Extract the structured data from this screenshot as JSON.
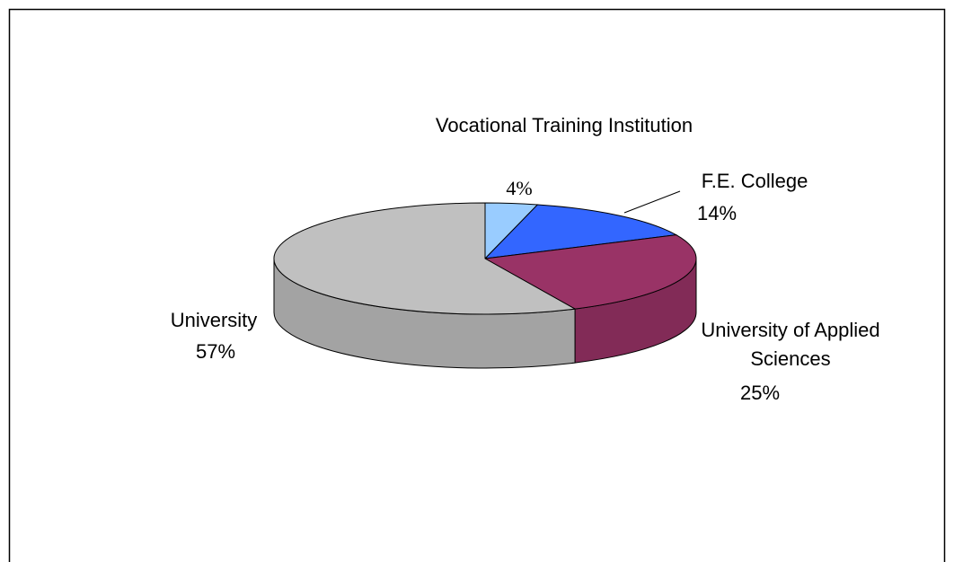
{
  "chart_data": {
    "type": "pie",
    "categories": [
      "Vocational Training Institution",
      "F.E. College",
      "University of Applied Sciences",
      "University"
    ],
    "values": [
      4,
      14,
      25,
      57
    ],
    "value_labels": [
      "4%",
      "14%",
      "25%",
      "57%"
    ],
    "colors": [
      "#99ccff",
      "#3366ff",
      "#993366",
      "#c0c0c0"
    ]
  }
}
